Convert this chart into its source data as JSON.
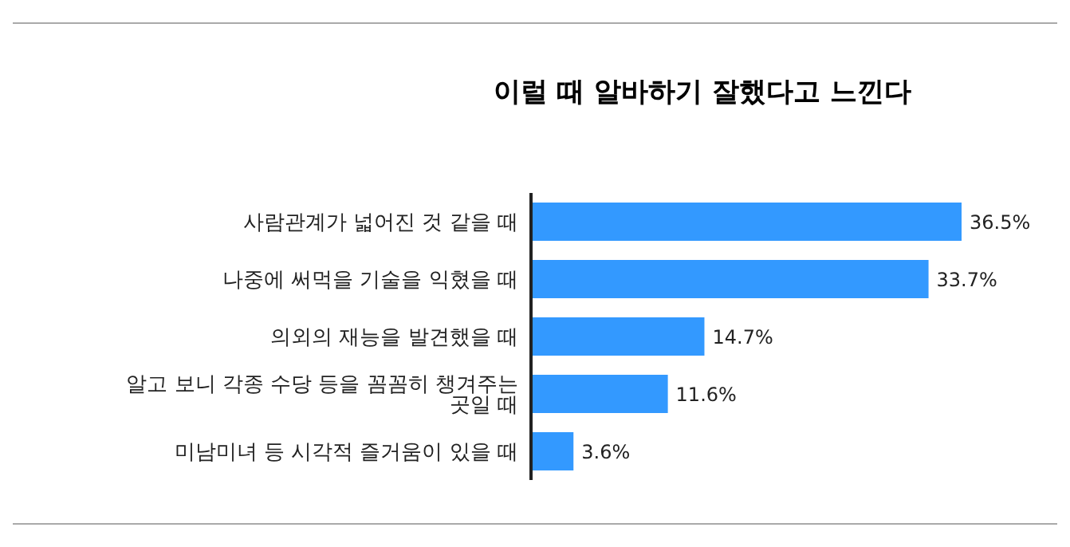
{
  "chart_data": {
    "type": "bar",
    "orientation": "horizontal",
    "title": "이럴 때 알바하기 잘했다고 느낀다",
    "categories": [
      "사람관계가 넓어진 것 같을 때",
      "나중에 써먹을 기술을 익혔을 때",
      "의외의 재능을 발견했을 때",
      "알고 보니 각종 수당 등을 꼼꼼히 챙겨주는 곳일 때",
      "미남미녀 등 시각적 즐거움이 있을 때"
    ],
    "values": [
      36.5,
      33.7,
      14.7,
      11.6,
      3.6
    ],
    "value_labels": [
      "36.5%",
      "33.7%",
      "14.7%",
      "11.6%",
      "3.6%"
    ],
    "color": "#3399ff",
    "grid": false,
    "legend": false
  }
}
